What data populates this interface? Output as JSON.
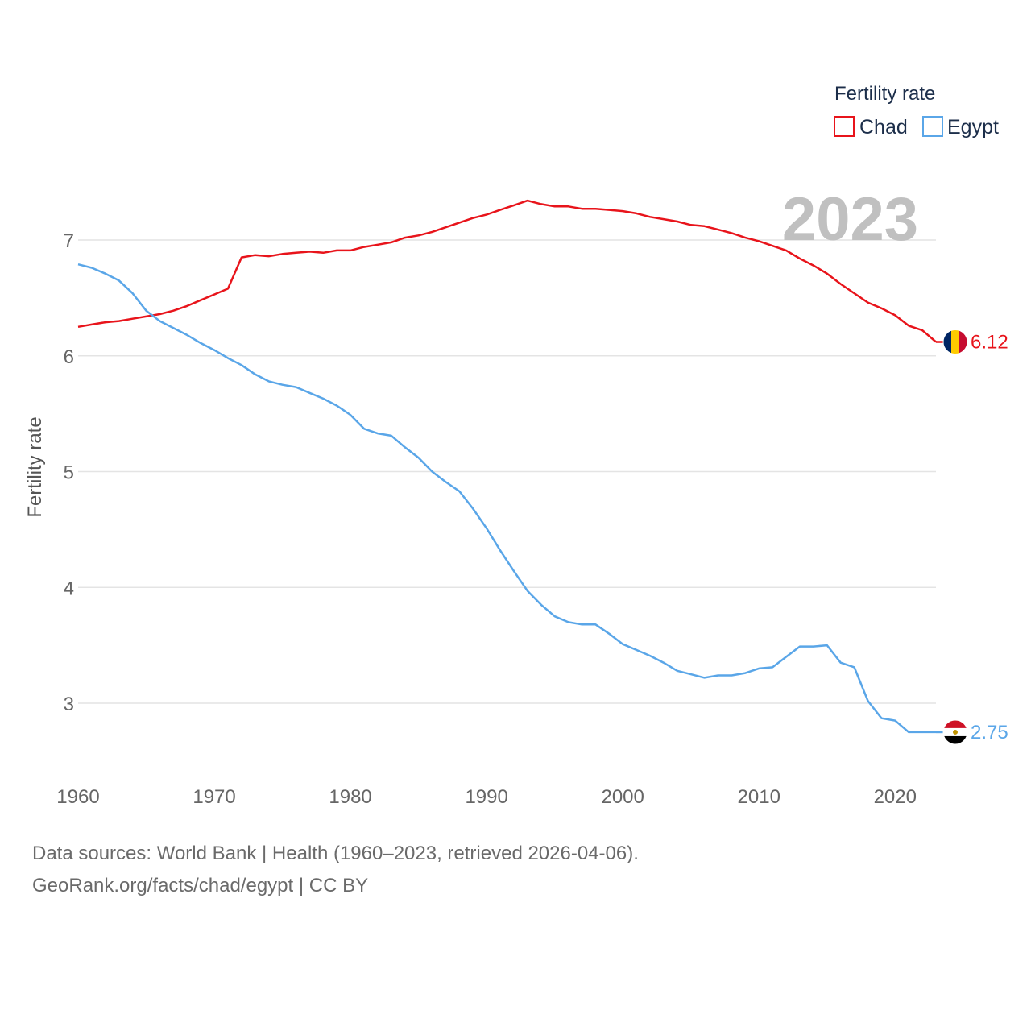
{
  "chart_data": {
    "type": "line",
    "title": "",
    "year_display": "2023",
    "legend_title": "Fertility rate",
    "ylabel": "Fertility rate",
    "xlabel": "",
    "xlim": [
      1960,
      2023
    ],
    "ylim": [
      2.5,
      7.5
    ],
    "x_ticks": [
      1960,
      1970,
      1980,
      1990,
      2000,
      2010,
      2020
    ],
    "y_ticks": [
      3,
      4,
      5,
      6,
      7
    ],
    "grid": true,
    "legend_position": "top-right",
    "x": [
      1960,
      1961,
      1962,
      1963,
      1964,
      1965,
      1966,
      1967,
      1968,
      1969,
      1970,
      1971,
      1972,
      1973,
      1974,
      1975,
      1976,
      1977,
      1978,
      1979,
      1980,
      1981,
      1982,
      1983,
      1984,
      1985,
      1986,
      1987,
      1988,
      1989,
      1990,
      1991,
      1992,
      1993,
      1994,
      1995,
      1996,
      1997,
      1998,
      1999,
      2000,
      2001,
      2002,
      2003,
      2004,
      2005,
      2006,
      2007,
      2008,
      2009,
      2010,
      2011,
      2012,
      2013,
      2014,
      2015,
      2016,
      2017,
      2018,
      2019,
      2020,
      2021,
      2022,
      2023
    ],
    "series": [
      {
        "name": "Chad",
        "color": "#e8141b",
        "end_label": "6.12",
        "flag": "chad-flag",
        "values": [
          6.25,
          6.27,
          6.29,
          6.3,
          6.32,
          6.34,
          6.36,
          6.39,
          6.43,
          6.48,
          6.53,
          6.58,
          6.85,
          6.87,
          6.86,
          6.88,
          6.89,
          6.9,
          6.89,
          6.91,
          6.91,
          6.94,
          6.96,
          6.98,
          7.02,
          7.04,
          7.07,
          7.11,
          7.15,
          7.19,
          7.22,
          7.26,
          7.3,
          7.34,
          7.31,
          7.29,
          7.29,
          7.27,
          7.27,
          7.26,
          7.25,
          7.23,
          7.2,
          7.18,
          7.16,
          7.13,
          7.12,
          7.09,
          7.06,
          7.02,
          6.99,
          6.95,
          6.91,
          6.84,
          6.78,
          6.71,
          6.62,
          6.54,
          6.46,
          6.41,
          6.35,
          6.26,
          6.22,
          6.12
        ]
      },
      {
        "name": "Egypt",
        "color": "#5aa6e8",
        "end_label": "2.75",
        "flag": "egypt-flag",
        "values": [
          6.79,
          6.76,
          6.71,
          6.65,
          6.54,
          6.39,
          6.3,
          6.24,
          6.18,
          6.11,
          6.05,
          5.98,
          5.92,
          5.84,
          5.78,
          5.75,
          5.73,
          5.68,
          5.63,
          5.57,
          5.49,
          5.37,
          5.33,
          5.31,
          5.21,
          5.12,
          5.0,
          4.91,
          4.83,
          4.68,
          4.51,
          4.32,
          4.14,
          3.97,
          3.85,
          3.75,
          3.7,
          3.68,
          3.68,
          3.6,
          3.51,
          3.46,
          3.41,
          3.35,
          3.28,
          3.25,
          3.22,
          3.24,
          3.24,
          3.26,
          3.3,
          3.31,
          3.4,
          3.49,
          3.49,
          3.5,
          3.35,
          3.31,
          3.02,
          2.87,
          2.85,
          2.75,
          2.75,
          2.75
        ]
      }
    ]
  },
  "footer": {
    "line1": "Data sources: World Bank | Health (1960–2023, retrieved 2026-04-06).",
    "line2": "GeoRank.org/facts/chad/egypt | CC BY"
  }
}
